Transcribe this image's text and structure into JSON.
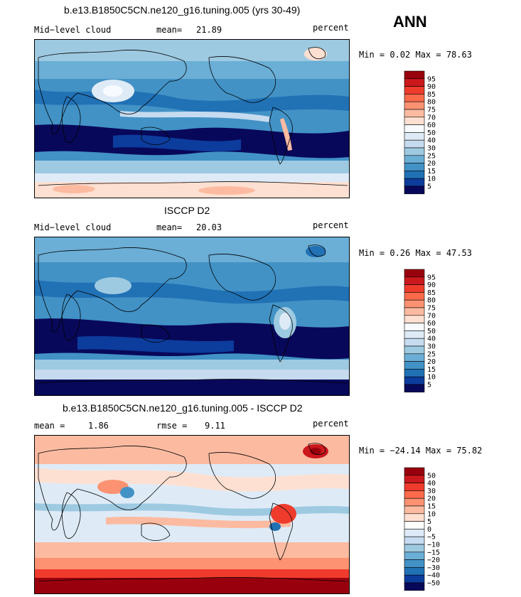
{
  "season": "ANN",
  "panels": [
    {
      "title": "b.e13.B1850C5CN.ne120_g16.tuning.005 (yrs 30-49)",
      "left_label": "Mid−level cloud",
      "stat_label": "mean=",
      "stat_value": "21.89",
      "stat2_label": "",
      "stat2_value": "",
      "units": "percent",
      "minmax": "Min =   0.02 Max =  78.63",
      "colorbar_labels": [
        "95",
        "90",
        "85",
        "80",
        "75",
        "70",
        "60",
        "50",
        "40",
        "30",
        "25",
        "20",
        "15",
        "10",
        "5"
      ]
    },
    {
      "title": "ISCCP D2",
      "left_label": "Mid−level cloud",
      "stat_label": "mean=",
      "stat_value": "20.03",
      "stat2_label": "",
      "stat2_value": "",
      "units": "percent",
      "minmax": "Min =   0.26 Max =  47.53",
      "colorbar_labels": [
        "95",
        "90",
        "85",
        "80",
        "75",
        "70",
        "60",
        "50",
        "40",
        "30",
        "25",
        "20",
        "15",
        "10",
        "5"
      ]
    },
    {
      "title": "b.e13.B1850C5CN.ne120_g16.tuning.005 - ISCCP D2",
      "left_label": "mean =",
      "stat_label": "",
      "stat_value": "1.86",
      "stat2_label": "rmse =",
      "stat2_value": "9.11",
      "units": "percent",
      "minmax": "Min = −24.14 Max =  75.82",
      "colorbar_labels": [
        "50",
        "40",
        "30",
        "20",
        "15",
        "10",
        "5",
        "0",
        "−5",
        "−10",
        "−15",
        "−20",
        "−30",
        "−40",
        "−50"
      ]
    }
  ],
  "colors": {
    "abs_scale": [
      "#99000d",
      "#cb181d",
      "#ef3b2c",
      "#fb6a4a",
      "#fc9272",
      "#fcbba1",
      "#fee0d2",
      "#f7fbff",
      "#deebf7",
      "#c6dbef",
      "#9ecae1",
      "#6baed6",
      "#4292c6",
      "#2171b5",
      "#0c3c9c",
      "#08085a"
    ],
    "diff_scale": [
      "#99000d",
      "#cb181d",
      "#ef3b2c",
      "#fb6a4a",
      "#fc9272",
      "#fcbba1",
      "#fee0d2",
      "#ffffff",
      "#deebf7",
      "#c6dbef",
      "#9ecae1",
      "#6baed6",
      "#4292c6",
      "#2171b5",
      "#0c3c9c",
      "#08085a"
    ]
  }
}
